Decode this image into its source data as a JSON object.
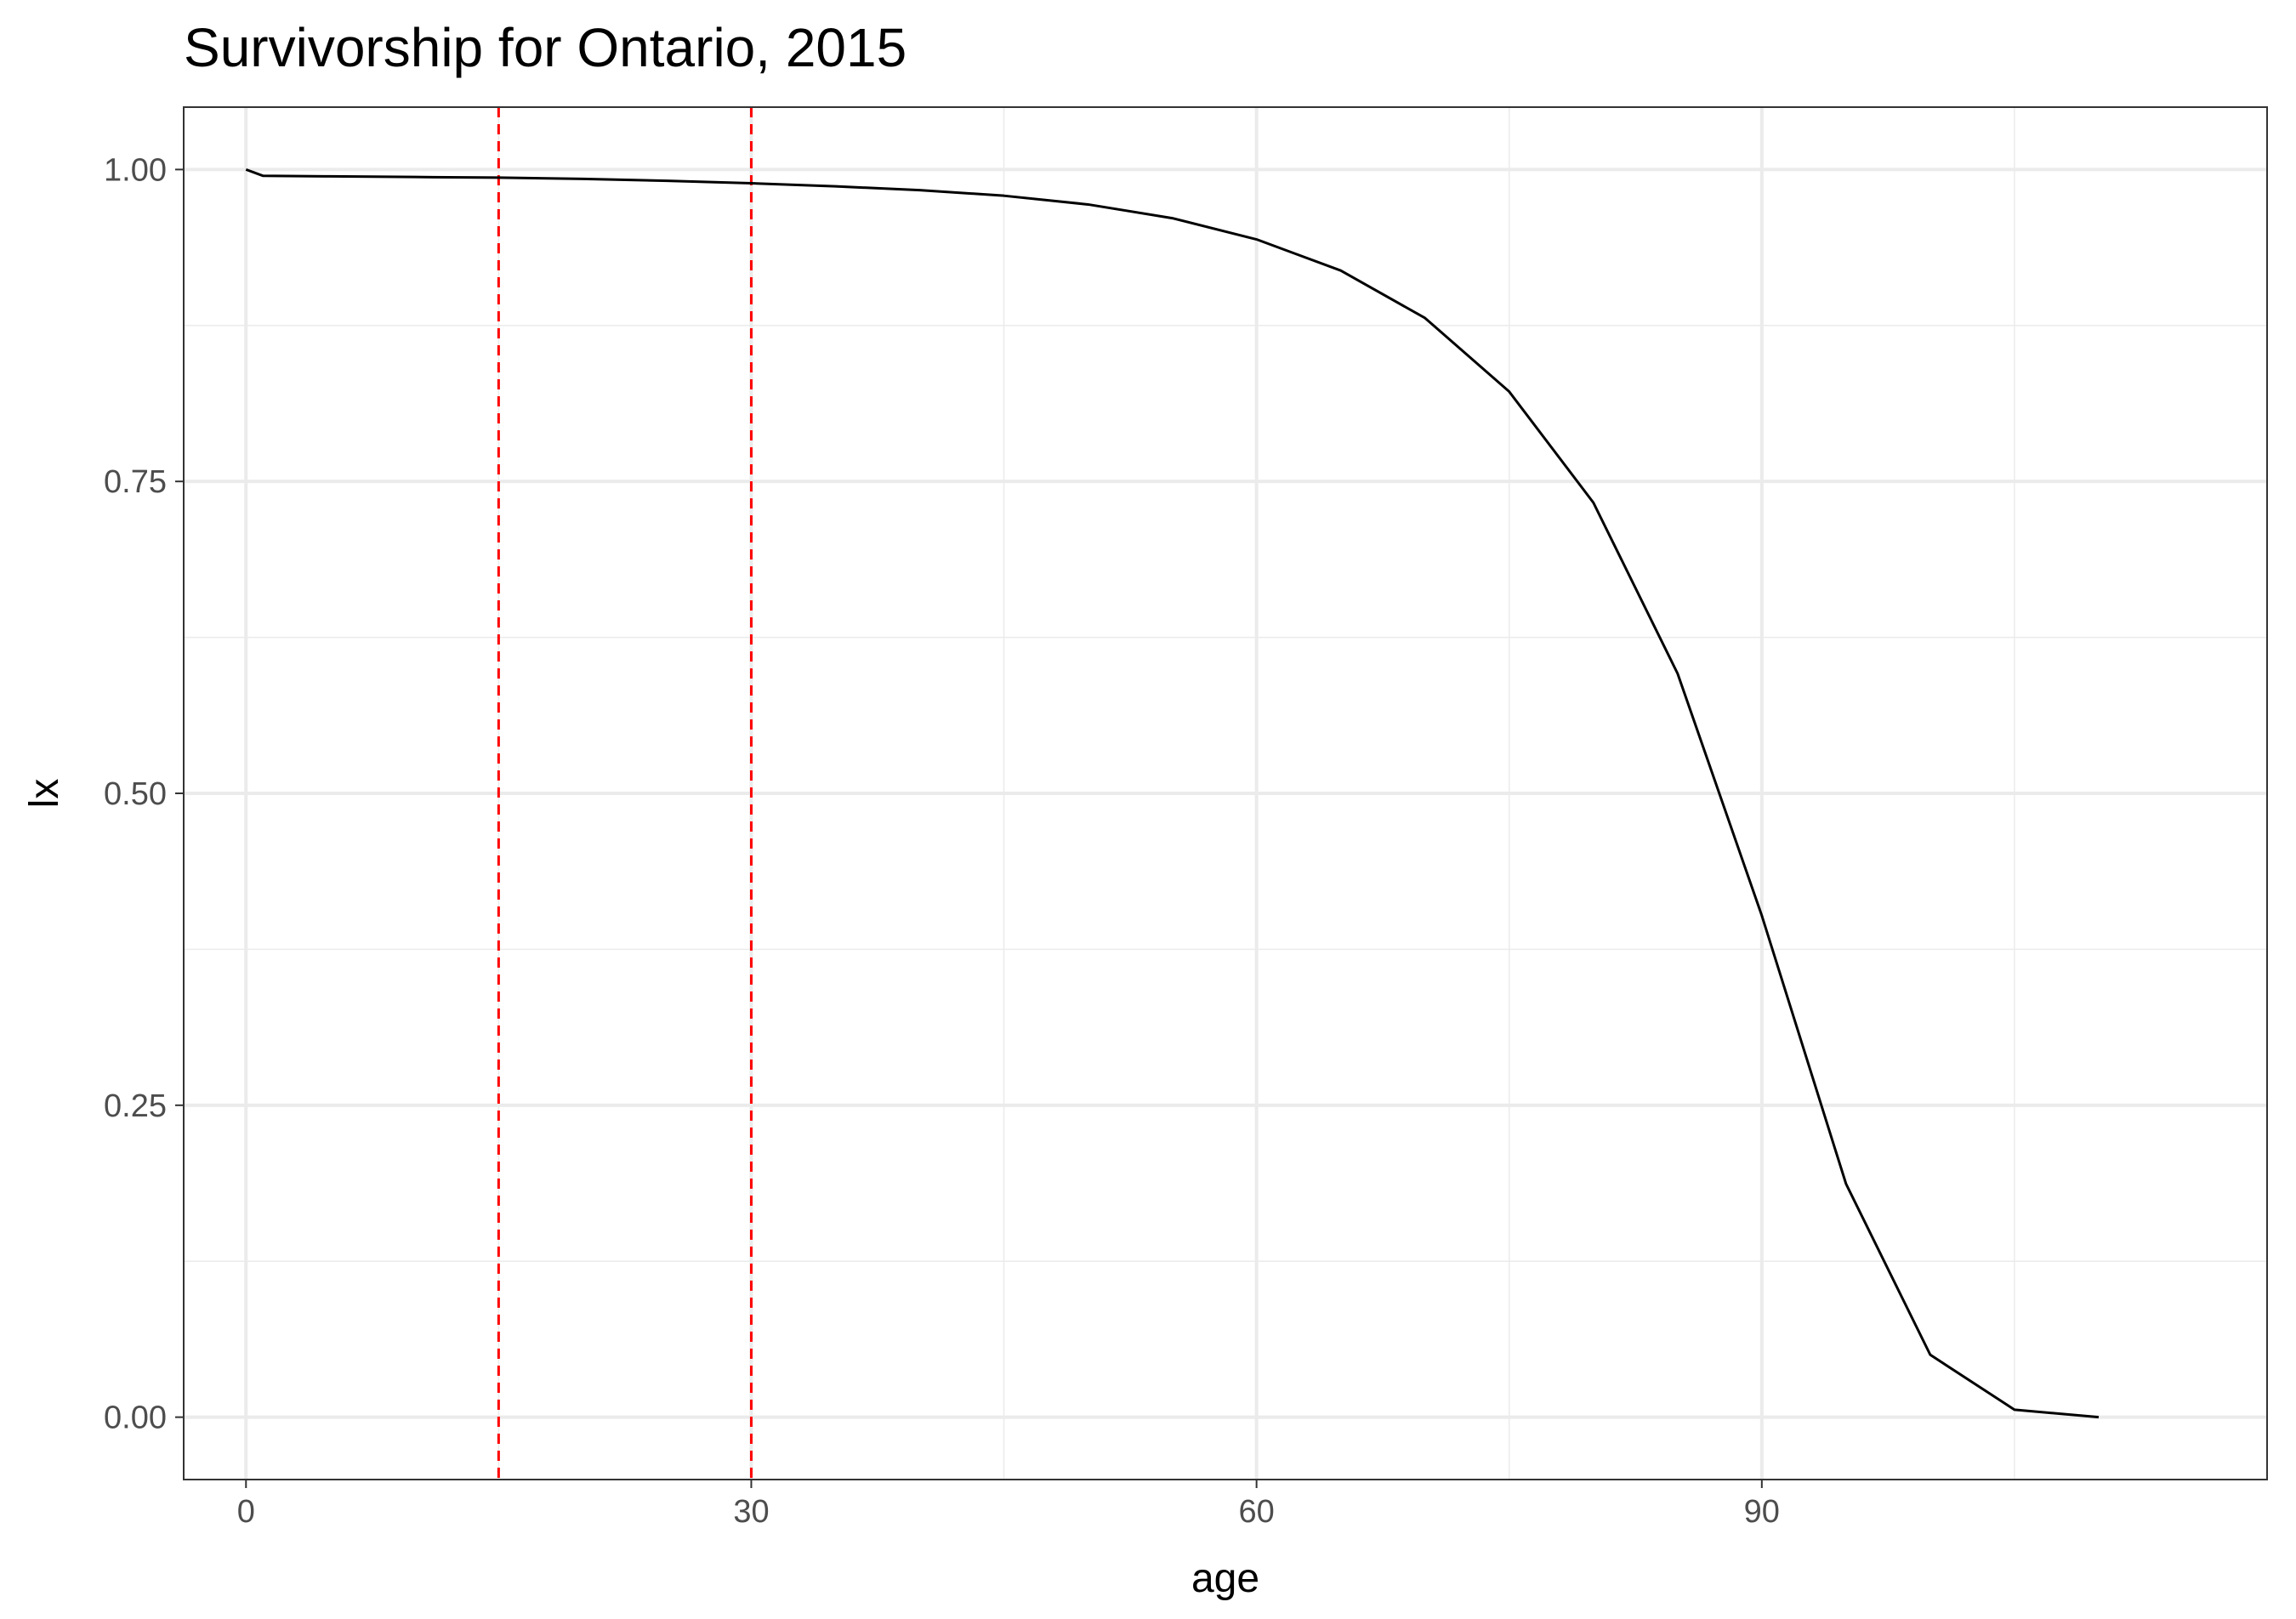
{
  "chart_data": {
    "type": "line",
    "title": "Survivorship for Ontario, 2015",
    "xlabel": "age",
    "ylabel": "lx",
    "xlim": [
      -3.7,
      120
    ],
    "ylim": [
      -0.05,
      1.05
    ],
    "x_ticks": [
      0,
      30,
      60,
      90
    ],
    "x_tick_labels": [
      "0",
      "30",
      "60",
      "90"
    ],
    "x_minor_ticks": [
      15,
      45,
      75,
      105
    ],
    "y_ticks": [
      0,
      0.25,
      0.5,
      0.75,
      1.0
    ],
    "y_tick_labels": [
      "0.00",
      "0.25",
      "0.50",
      "0.75",
      "1.00"
    ],
    "y_minor_ticks": [
      0.125,
      0.375,
      0.625,
      0.875
    ],
    "grid": true,
    "series": [
      {
        "color": "#000000",
        "x": [
          0,
          1,
          5,
          10,
          15,
          20,
          25,
          30,
          35,
          40,
          45,
          50,
          55,
          60,
          65,
          70,
          75,
          80,
          85,
          90,
          95,
          100,
          105,
          110
        ],
        "y": [
          1.0,
          0.995,
          0.9945,
          0.994,
          0.9935,
          0.9925,
          0.991,
          0.989,
          0.9865,
          0.9835,
          0.979,
          0.972,
          0.961,
          0.944,
          0.919,
          0.881,
          0.822,
          0.733,
          0.596,
          0.402,
          0.187,
          0.05,
          0.006,
          0.0
        ]
      }
    ],
    "reference_lines": [
      {
        "axis": "x",
        "value": 15,
        "color": "#ff0000",
        "style": "dashed"
      },
      {
        "axis": "x",
        "value": 30,
        "color": "#ff0000",
        "style": "dashed"
      }
    ]
  }
}
